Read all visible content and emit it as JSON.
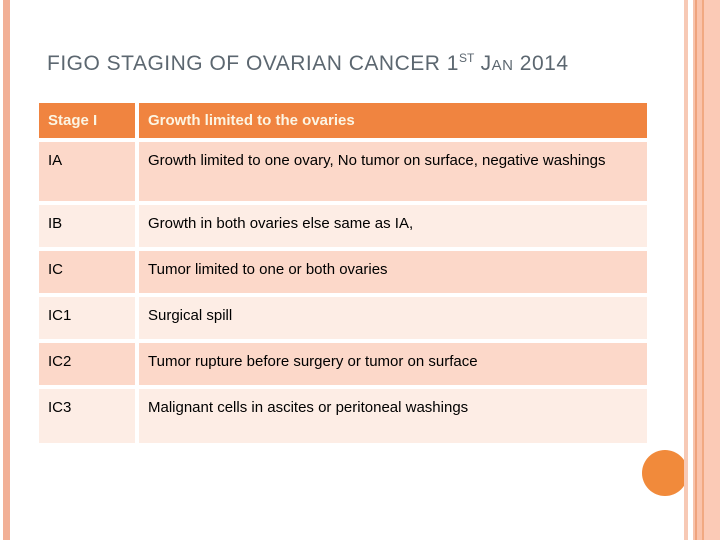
{
  "title": {
    "main": "FIGO STAGING OF OVARIAN CANCER 1",
    "ordinal": "ST",
    "date": " Jan 2014"
  },
  "table": {
    "header": {
      "stage": "Stage I",
      "description": "Growth limited to the ovaries"
    },
    "rows": [
      {
        "stage": "IA",
        "description": "Growth limited to one ovary, No tumor on surface, negative washings",
        "shade": "dark"
      },
      {
        "stage": "IB",
        "description": "Growth in both ovaries else same as IA,",
        "shade": "light"
      },
      {
        "stage": "IC",
        "description": "Tumor limited to one or both ovaries",
        "shade": "dark"
      },
      {
        "stage": "IC1",
        "description": "Surgical spill",
        "shade": "light"
      },
      {
        "stage": "IC2",
        "description": "Tumor rupture before surgery or tumor on surface",
        "shade": "dark"
      },
      {
        "stage": "IC3",
        "description": "Malignant cells in ascites or peritoneal washings",
        "shade": "light"
      }
    ]
  },
  "colors": {
    "header_bg": "#F08440",
    "header_text": "#FCF5E3",
    "row_dark": "#FCD8C9",
    "row_light": "#FDEDE5",
    "title_gray": "#5C6770",
    "circle_orange": "#F18A3B",
    "stripe_left": "#F2B096",
    "right_stripe_1": "#F7C9B5",
    "right_stripe_2": "#F7C3AC",
    "right_stripe_3": "#EFA37D",
    "right_stripe_4": "#FAC3AB",
    "right_stripe_5": "#F1A982",
    "right_stripe_6": "#FBCAB6"
  }
}
